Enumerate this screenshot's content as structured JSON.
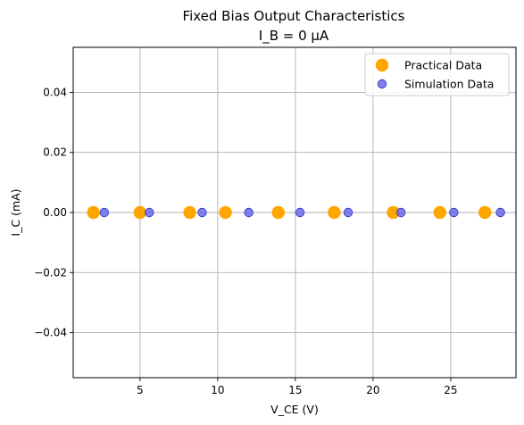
{
  "chart_data": {
    "type": "scatter",
    "title": "Fixed Bias Output Characteristics",
    "subtitle": "I_B = 0 µA",
    "xlabel": "V_CE (V)",
    "ylabel": "I_C (mA)",
    "xlim": [
      0.7,
      29.2
    ],
    "ylim": [
      -0.055,
      0.055
    ],
    "xticks": [
      5,
      10,
      15,
      20,
      25
    ],
    "yticks": [
      -0.04,
      -0.02,
      0.0,
      0.02,
      0.04
    ],
    "ytick_labels": [
      "−0.04",
      "−0.02",
      "0.00",
      "0.02",
      "0.04"
    ],
    "grid": true,
    "legend_position": "upper-right",
    "series": [
      {
        "name": "Practical Data",
        "color": "#ffa500",
        "marker": "circle-large",
        "x": [
          2.0,
          5.0,
          8.2,
          10.5,
          13.9,
          17.5,
          21.3,
          24.3,
          27.2
        ],
        "y": [
          0,
          0,
          0,
          0,
          0,
          0,
          0,
          0,
          0
        ]
      },
      {
        "name": "Simulation Data",
        "color": "#6a6ae8",
        "marker": "circle-small",
        "x": [
          2.7,
          5.6,
          9.0,
          12.0,
          15.3,
          18.4,
          21.8,
          25.2,
          28.2
        ],
        "y": [
          0,
          0,
          0,
          0,
          0,
          0,
          0,
          0,
          0
        ]
      }
    ]
  }
}
